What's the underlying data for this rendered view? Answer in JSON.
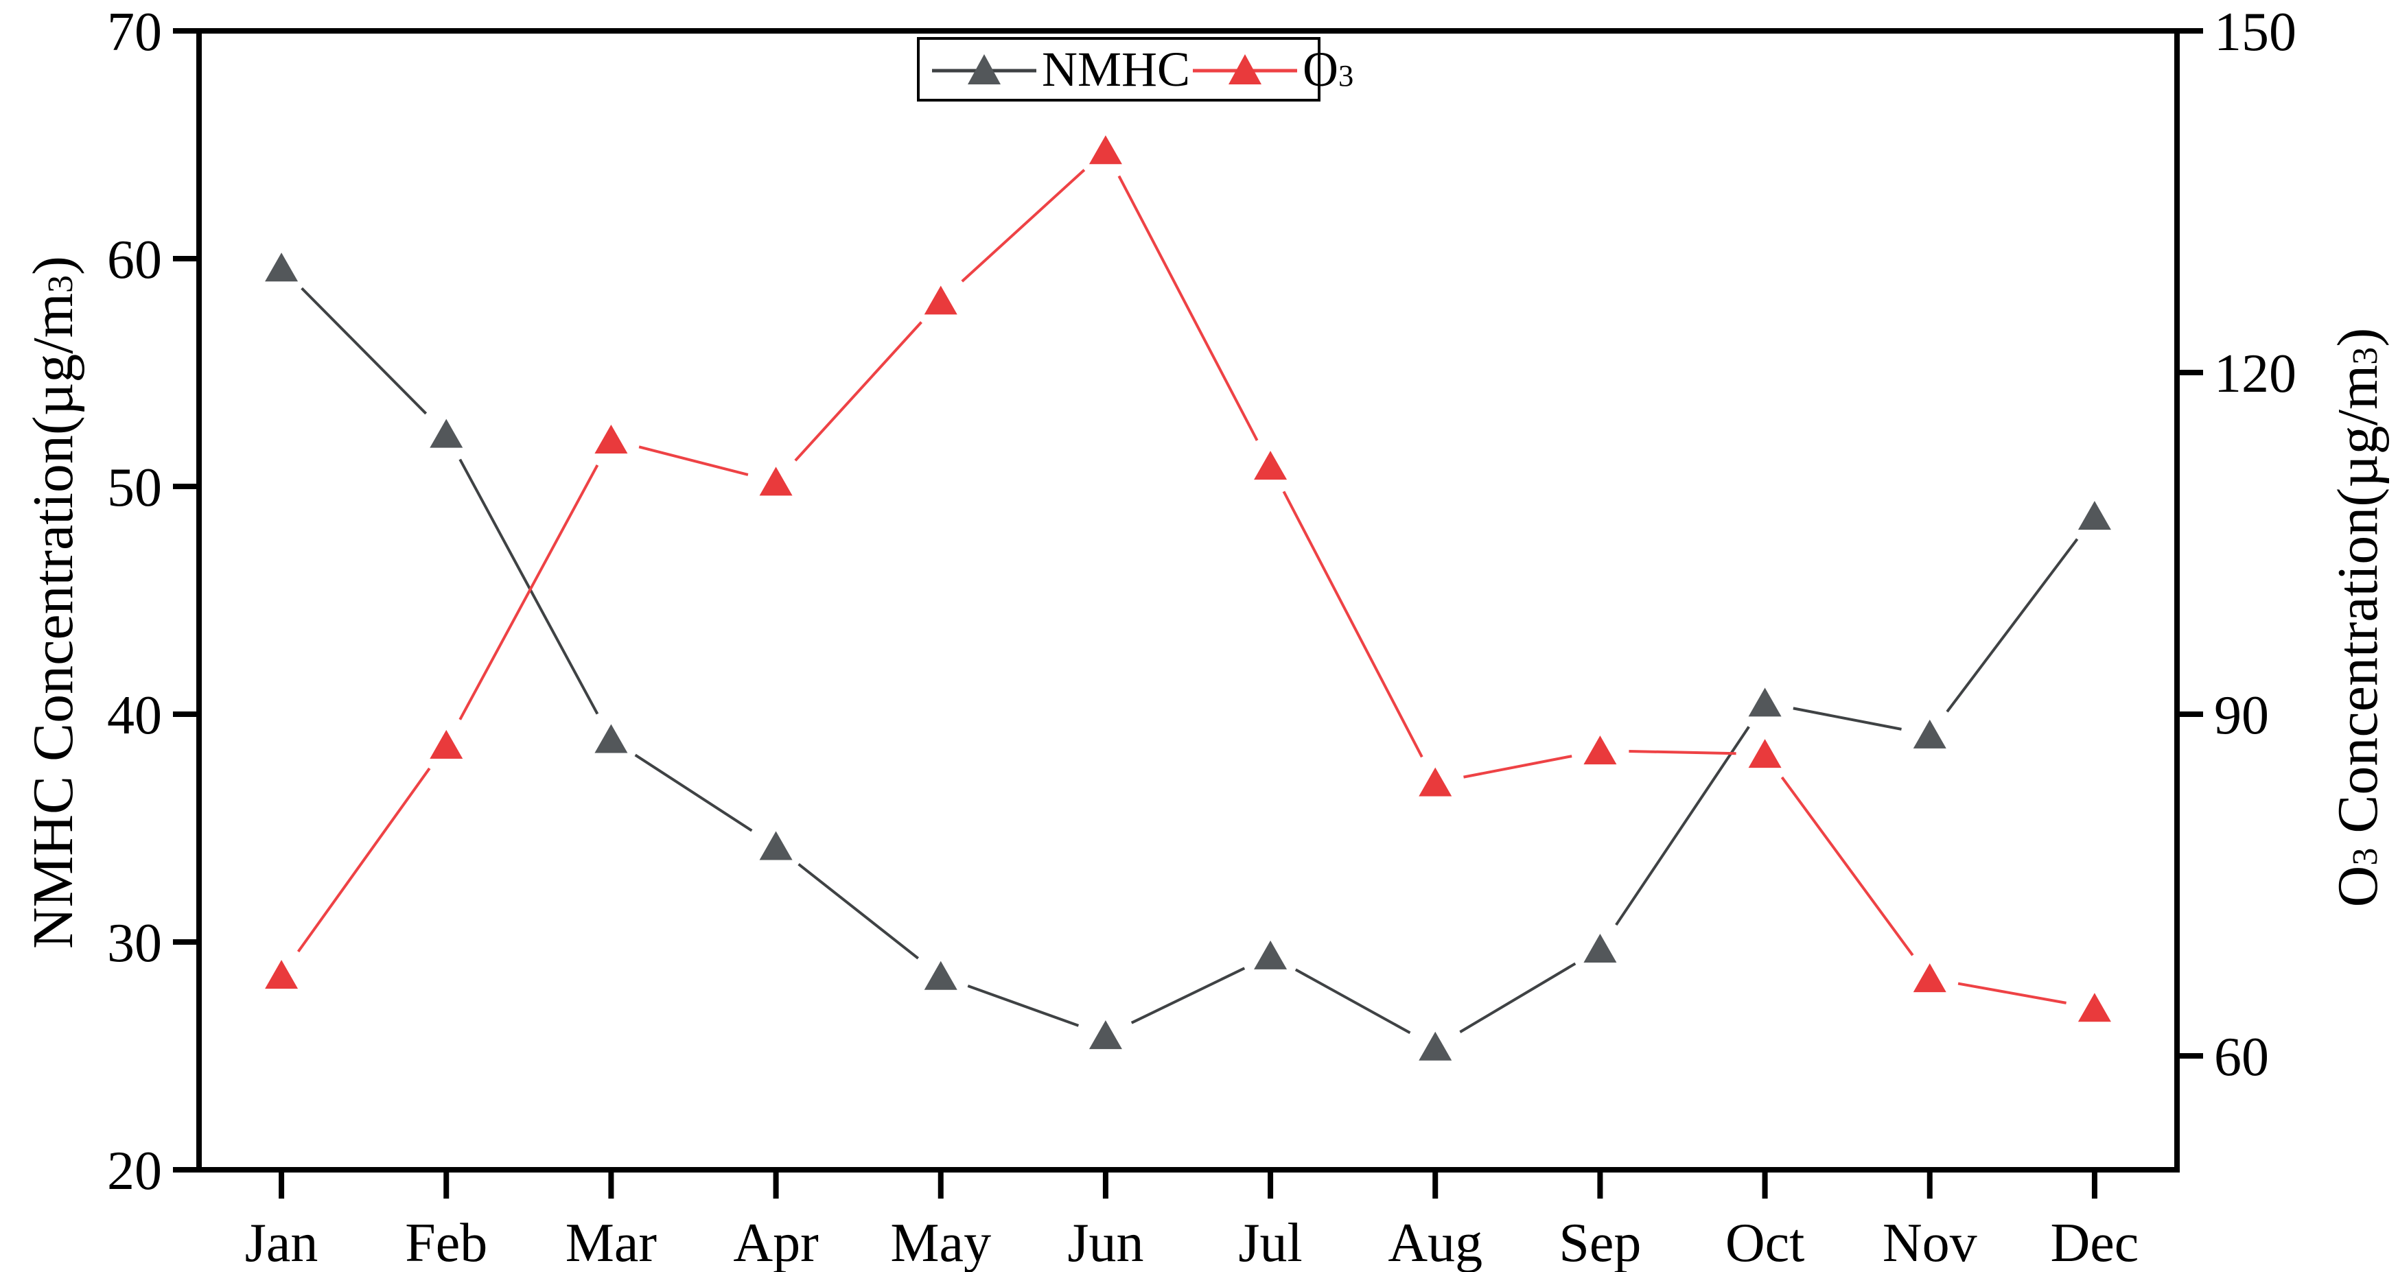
{
  "page": {
    "background": "#ffffff"
  },
  "chart_data": {
    "type": "line",
    "title": "",
    "categories": [
      "Jan",
      "Feb",
      "Mar",
      "Apr",
      "May",
      "Jun",
      "Jul",
      "Aug",
      "Sep",
      "Oct",
      "Nov",
      "Dec"
    ],
    "series": [
      {
        "name": "NMHC",
        "axis": "left",
        "marker": "triangle-up",
        "marker_color": "#53575a",
        "line_color": "#3f4244",
        "values": [
          59.6,
          52.3,
          38.9,
          34.2,
          28.5,
          25.9,
          29.4,
          25.4,
          29.7,
          40.5,
          39.1,
          48.7
        ]
      },
      {
        "name": "O₃",
        "axis": "right",
        "marker": "triangle-up",
        "marker_color": "#e93a3c",
        "line_color": "#ee4245",
        "values": [
          67.1,
          87.3,
          114.1,
          110.4,
          126.3,
          139.5,
          111.8,
          84.0,
          86.8,
          86.5,
          66.8,
          64.2
        ]
      }
    ],
    "left_axis": {
      "label": "NMHC Concentration(µg/m³)",
      "min": 20,
      "max": 70,
      "ticks": [
        70,
        60,
        50,
        40,
        30,
        20
      ]
    },
    "right_axis": {
      "label": "O₃ Concentration(µg/m³)",
      "min": 50,
      "max": 150,
      "ticks": [
        150,
        120,
        90,
        60
      ]
    },
    "x_axis": {
      "tick_labels": [
        "Jan",
        "Feb",
        "Mar",
        "Apr",
        "May",
        "Jun",
        "Jul",
        "Aug",
        "Sep",
        "Oct",
        "Nov",
        "Dec"
      ]
    },
    "legend": {
      "position": "top-center",
      "entries": [
        "NMHC",
        "O₃"
      ]
    },
    "grid": false,
    "plot_border": "#000000"
  },
  "legend": {
    "nmhc_label": "NMHC",
    "o3_main": "O",
    "o3_sub": "3"
  },
  "axis_titles": {
    "left_main": "NMHC Concentration(µg/m",
    "left_sup": "3",
    "left_close": ")",
    "right_main": "O",
    "right_sub": "3",
    "right_mid": " Concentration(µg/m",
    "right_sup": "3",
    "right_close": ")"
  }
}
